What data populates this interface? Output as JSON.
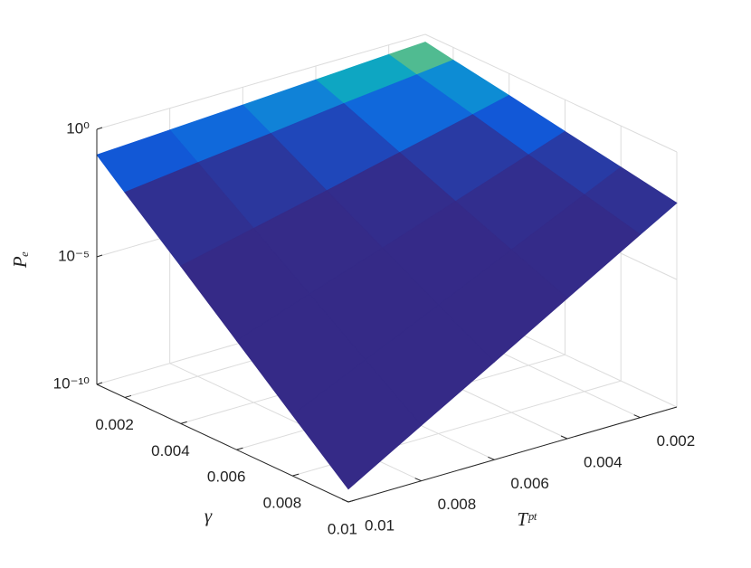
{
  "chart_data": {
    "type": "surface",
    "xlabel": "Tᵖᵗ",
    "ylabel": "γ",
    "zlabel": "Pₑ",
    "x": [
      0.001,
      0.002,
      0.004,
      0.006,
      0.008,
      0.01
    ],
    "y": [
      0.001,
      0.002,
      0.004,
      0.006,
      0.008,
      0.01
    ],
    "z": [
      [
        0.5,
        0.42,
        0.29,
        0.2,
        0.14,
        0.1
      ],
      [
        0.32,
        0.22,
        0.11,
        0.05,
        0.024,
        0.011
      ],
      [
        0.14,
        0.064,
        0.014,
        0.003,
        0.00067,
        0.00015
      ],
      [
        0.057,
        0.018,
        0.0018,
        0.00018,
        1.9e-05,
        1.9e-06
      ],
      [
        0.024,
        0.0052,
        0.00024,
        1.1e-05,
        5.2e-07,
        2.4e-08
      ],
      [
        0.01,
        0.0015,
        3.2e-05,
        6.8e-07,
        1.5e-08,
        3.2e-10
      ]
    ],
    "xlim": [
      0.001,
      0.01
    ],
    "xticks": [
      0.002,
      0.004,
      0.006,
      0.008,
      0.01
    ],
    "ylim": [
      0.001,
      0.01
    ],
    "yticks": [
      0.002,
      0.004,
      0.006,
      0.008,
      0.01
    ],
    "zlim": [
      1e-10,
      1
    ],
    "zscale": "log",
    "zticks": [
      {
        "value": 1e-10,
        "label": "10⁻¹⁰"
      },
      {
        "value": 1e-05,
        "label": "10⁻⁵"
      },
      {
        "value": 1,
        "label": "10⁰"
      }
    ],
    "grid": true,
    "colormap": "parula"
  }
}
